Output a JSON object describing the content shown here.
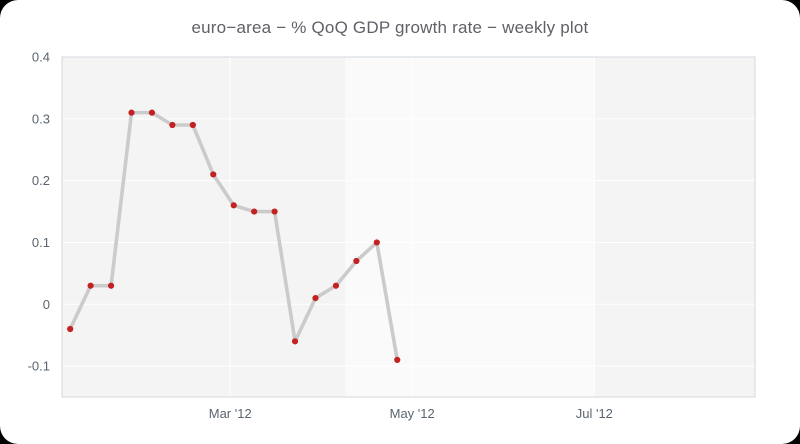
{
  "chart_data": {
    "type": "line",
    "title": "euro−area − % QoQ GDP growth rate − weekly plot",
    "series": [
      {
        "name": "QoQ GDP growth rate (weekly)",
        "x": [
          0,
          1,
          2,
          3,
          4,
          5,
          6,
          7,
          8,
          9,
          10,
          11,
          12,
          13,
          14,
          15,
          16
        ],
        "values": [
          -0.04,
          0.03,
          0.03,
          0.31,
          0.31,
          0.29,
          0.29,
          0.21,
          0.16,
          0.15,
          0.15,
          -0.06,
          0.01,
          0.03,
          0.07,
          0.1,
          -0.09
        ]
      }
    ],
    "x_ticks": [
      {
        "position": 7.83,
        "label": "Mar '12"
      },
      {
        "position": 16.73,
        "label": "May '12"
      },
      {
        "position": 25.64,
        "label": "Jul '12"
      }
    ],
    "y_ticks": [
      -0.1,
      0,
      0.1,
      0.2,
      0.3,
      0.4
    ],
    "y_tick_labels": [
      "-0.1",
      "0",
      "0.1",
      "0.2",
      "0.3",
      "0.4"
    ],
    "xlim": [
      -0.4,
      33.5
    ],
    "ylim": [
      -0.15,
      0.4
    ],
    "grid": true,
    "legend": "none",
    "colors": {
      "line": "#cbcbcb",
      "marker": "#c32222",
      "plot_bg": "#f4f4f4",
      "band_bg": "#fafafa",
      "gridline": "#ffffff",
      "plot_border": "#d3d8de"
    },
    "band": {
      "from": 13.45,
      "to": 25.64
    }
  }
}
